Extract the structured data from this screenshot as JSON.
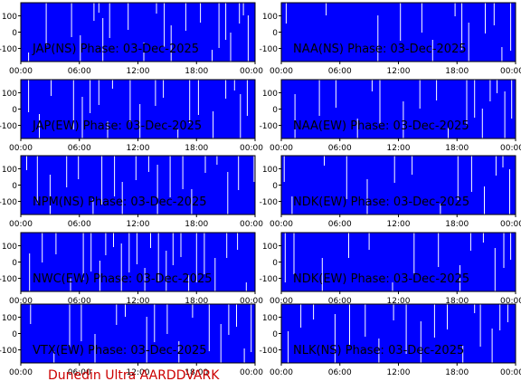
{
  "figure": {
    "footer": "Dunedin Ultra AARDDVARK",
    "footer_color": "#cc0000",
    "plot_color": "#0000ff",
    "spike_color": "#ffffff",
    "axis_color": "#000000"
  },
  "chart_data": [
    {
      "type": "area",
      "title": "JAP(NS) Phase: 03-Dec-2025",
      "xlabel": "",
      "ylabel": "",
      "xlim": [
        0,
        24
      ],
      "ylim": [
        -180,
        180
      ],
      "x_ticks": [
        "00:00",
        "06:00",
        "12:00",
        "18:00",
        "00:00"
      ],
      "y_ticks": [
        100,
        0,
        -100
      ],
      "spikes_hours": [
        0.8,
        2.6,
        5.2,
        6.1,
        7.5,
        8.0,
        8.4,
        9.1,
        11.0,
        12.6,
        13.9,
        14.7,
        15.4,
        16.9,
        18.4,
        19.6,
        20.3,
        21.0,
        21.5,
        22.4,
        22.8,
        23.3
      ]
    },
    {
      "type": "area",
      "title": "NAA(NS) Phase: 03-Dec-2025",
      "xlabel": "",
      "ylabel": "",
      "xlim": [
        0,
        24
      ],
      "ylim": [
        -180,
        180
      ],
      "x_ticks": [
        "00:00",
        "06:00",
        "12:00",
        "18:00",
        "00:00"
      ],
      "y_ticks": [
        100,
        0,
        -100
      ],
      "spikes_hours": [
        0.5,
        4.6,
        9.9,
        12.2,
        14.4,
        15.5,
        17.8,
        18.5,
        19.2,
        20.9,
        21.8,
        22.6,
        23.5
      ]
    },
    {
      "type": "area",
      "title": "JAP(EW) Phase: 03-Dec-2025",
      "xlabel": "",
      "ylabel": "",
      "xlim": [
        0,
        24
      ],
      "ylim": [
        -180,
        180
      ],
      "x_ticks": [
        "00:00",
        "06:00",
        "12:00",
        "18:00",
        "00:00"
      ],
      "y_ticks": [
        100,
        0,
        -100
      ],
      "spikes_hours": [
        0.8,
        1.9,
        3.1,
        5.4,
        6.3,
        7.1,
        8.0,
        8.9,
        9.4,
        11.2,
        12.2,
        13.8,
        14.6,
        16.1,
        17.3,
        18.2,
        19.7,
        21.0,
        21.9,
        22.5,
        23.2
      ]
    },
    {
      "type": "area",
      "title": "NAA(EW) Phase: 03-Dec-2025",
      "xlabel": "",
      "ylabel": "",
      "xlim": [
        0,
        24
      ],
      "ylim": [
        -180,
        180
      ],
      "x_ticks": [
        "00:00",
        "06:00",
        "12:00",
        "18:00",
        "00:00"
      ],
      "y_ticks": [
        100,
        0,
        -100
      ],
      "spikes_hours": [
        1.4,
        3.9,
        5.6,
        7.8,
        9.3,
        10.1,
        12.5,
        14.2,
        15.9,
        17.1,
        19.0,
        19.8,
        20.6,
        21.4,
        22.1,
        22.9,
        23.6
      ]
    },
    {
      "type": "area",
      "title": "NPM(NS) Phase: 03-Dec-2025",
      "xlabel": "",
      "ylabel": "",
      "xlim": [
        0,
        24
      ],
      "ylim": [
        -180,
        180
      ],
      "x_ticks": [
        "00:00",
        "06:00",
        "12:00",
        "18:00",
        "00:00"
      ],
      "y_ticks": [
        100,
        0,
        -100
      ],
      "spikes_hours": [
        0.6,
        1.7,
        3.0,
        4.7,
        5.9,
        7.4,
        8.3,
        9.6,
        10.4,
        11.8,
        13.1,
        14.0,
        15.3,
        16.6,
        17.5,
        18.9,
        20.1,
        21.2,
        22.3,
        23.9
      ]
    },
    {
      "type": "area",
      "title": "NDK(EW) Phase: 03-Dec-2025",
      "xlabel": "",
      "ylabel": "",
      "xlim": [
        0,
        24
      ],
      "ylim": [
        -180,
        180
      ],
      "x_ticks": [
        "00:00",
        "06:00",
        "12:00",
        "18:00",
        "00:00"
      ],
      "y_ticks": [
        100,
        0,
        -100
      ],
      "spikes_hours": [
        0.3,
        1.1,
        4.4,
        6.7,
        8.8,
        11.6,
        13.4,
        16.3,
        18.1,
        19.5,
        20.8,
        22.0,
        22.7,
        23.4
      ]
    },
    {
      "type": "area",
      "title": "NWC(EW) Phase: 03-Dec-2025",
      "xlabel": "",
      "ylabel": "",
      "xlim": [
        0,
        24
      ],
      "ylim": [
        -180,
        180
      ],
      "x_ticks": [
        "00:00",
        "06:00",
        "12:00",
        "18:00",
        "00:00"
      ],
      "y_ticks": [
        100,
        0,
        -100
      ],
      "spikes_hours": [
        0.9,
        2.2,
        3.6,
        5.1,
        6.4,
        7.2,
        8.1,
        8.7,
        9.5,
        10.3,
        11.1,
        11.9,
        12.7,
        13.3,
        14.1,
        14.9,
        15.6,
        16.4,
        17.2,
        18.0,
        18.8,
        19.9,
        21.1,
        22.2,
        23.1
      ]
    },
    {
      "type": "area",
      "title": "NDK(EW) Phase: 03-Dec-2025",
      "xlabel": "",
      "ylabel": "",
      "xlim": [
        0,
        24
      ],
      "ylim": [
        -180,
        180
      ],
      "x_ticks": [
        "00:00",
        "06:00",
        "12:00",
        "18:00",
        "00:00"
      ],
      "y_ticks": [
        100,
        0,
        -100
      ],
      "spikes_hours": [
        0.4,
        1.3,
        4.2,
        6.9,
        9.0,
        11.4,
        13.6,
        16.1,
        18.3,
        19.4,
        20.7,
        21.9,
        22.8,
        23.5
      ]
    },
    {
      "type": "area",
      "title": "VTX(EW) Phase: 03-Dec-2025",
      "xlabel": "",
      "ylabel": "",
      "xlim": [
        0,
        24
      ],
      "ylim": [
        -180,
        180
      ],
      "x_ticks": [
        "00:00",
        "06:00",
        "12:00",
        "18:00",
        "00:00"
      ],
      "y_ticks": [
        100,
        0,
        -100
      ],
      "spikes_hours": [
        1.0,
        3.4,
        5.0,
        6.2,
        7.6,
        9.8,
        10.7,
        12.9,
        13.7,
        15.0,
        16.2,
        17.6,
        19.3,
        20.5,
        21.3,
        22.1,
        22.9,
        23.6
      ]
    },
    {
      "type": "area",
      "title": "NLK(NS) Phase: 03-Dec-2025",
      "xlabel": "",
      "ylabel": "",
      "xlim": [
        0,
        24
      ],
      "ylim": [
        -180,
        180
      ],
      "x_ticks": [
        "00:00",
        "06:00",
        "12:00",
        "18:00",
        "00:00"
      ],
      "y_ticks": [
        100,
        0,
        -100
      ],
      "spikes_hours": [
        0.7,
        2.0,
        3.3,
        5.5,
        7.0,
        8.6,
        10.0,
        11.5,
        12.8,
        14.3,
        15.7,
        17.0,
        18.6,
        19.8,
        20.4,
        21.6,
        22.4,
        23.2
      ]
    }
  ]
}
